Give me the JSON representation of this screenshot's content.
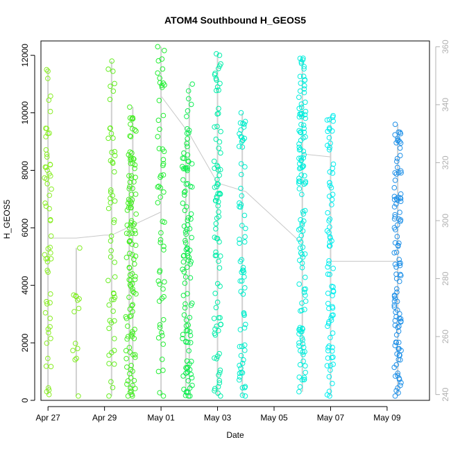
{
  "chart_data": {
    "type": "scatter",
    "title": "ATOM4 Southbound H_GEOS5",
    "xlabel": "Date",
    "ylabel": "H_GEOS5",
    "x_unit": "date",
    "xlim": [
      "2016-04-26T18:00",
      "2016-05-10T12:00"
    ],
    "ylim": [
      0,
      12500
    ],
    "x_ticks": [
      {
        "date": "2016-04-27",
        "label": "Apr 27"
      },
      {
        "date": "2016-04-29",
        "label": "Apr 29"
      },
      {
        "date": "2016-05-01",
        "label": "May 01"
      },
      {
        "date": "2016-05-03",
        "label": "May 03"
      },
      {
        "date": "2016-05-05",
        "label": "May 05"
      },
      {
        "date": "2016-05-07",
        "label": "May 07"
      },
      {
        "date": "2016-05-09",
        "label": "May 09"
      }
    ],
    "y_ticks": [
      0,
      2000,
      4000,
      6000,
      8000,
      10000,
      12000
    ],
    "right_axis": {
      "ylim": [
        238,
        362
      ],
      "ticks": [
        240,
        260,
        280,
        300,
        320,
        340,
        360
      ],
      "color": "#b0b0b0"
    },
    "grid": false,
    "point_style": "open-circle",
    "color_gradient": [
      "#88ee00",
      "#00ee44",
      "#00eedd",
      "#1e88e0"
    ],
    "profiles": [
      {
        "t": "2016-04-27T00:00",
        "ymin": 200,
        "ymax": 11500,
        "n": 60,
        "color": "#88ee22"
      },
      {
        "t": "2016-04-28T00:00",
        "ymin": 150,
        "ymax": 5300,
        "n": 14,
        "color": "#80ee22"
      },
      {
        "t": "2016-04-29T06:00",
        "ymin": 150,
        "ymax": 11800,
        "n": 55,
        "color": "#66ee22"
      },
      {
        "t": "2016-04-29T21:00",
        "ymin": 150,
        "ymax": 8600,
        "n": 45,
        "color": "#44ee22"
      },
      {
        "t": "2016-04-30T00:00",
        "ymin": 150,
        "ymax": 10200,
        "n": 80,
        "color": "#44ee22"
      },
      {
        "t": "2016-05-01T00:00",
        "ymin": 150,
        "ymax": 12300,
        "n": 60,
        "color": "#22ee33"
      },
      {
        "t": "2016-05-01T21:00",
        "ymin": 150,
        "ymax": 9100,
        "n": 60,
        "color": "#11ee44"
      },
      {
        "t": "2016-05-02T00:00",
        "ymin": 150,
        "ymax": 11000,
        "n": 55,
        "color": "#11ee55"
      },
      {
        "t": "2016-05-03T00:00",
        "ymin": 150,
        "ymax": 12050,
        "n": 90,
        "color": "#00eeaa"
      },
      {
        "t": "2016-05-03T21:00",
        "ymin": 150,
        "ymax": 10000,
        "n": 70,
        "color": "#00eecc"
      },
      {
        "t": "2016-05-06T00:00",
        "ymin": 300,
        "ymax": 11900,
        "n": 130,
        "color": "#00eedd"
      },
      {
        "t": "2016-05-07T00:00",
        "ymin": 150,
        "ymax": 9900,
        "n": 80,
        "color": "#00eeee"
      },
      {
        "t": "2016-05-09T09:00",
        "ymin": 150,
        "ymax": 9600,
        "n": 110,
        "color": "#1e90e8"
      }
    ],
    "right_axis_line": [
      {
        "t": "2016-04-27T00:00",
        "v": 280
      },
      {
        "t": "2016-04-27T00:00",
        "v": 294
      },
      {
        "t": "2016-04-28T00:00",
        "v": 294
      },
      {
        "t": "2016-04-28T00:00",
        "v": 294
      },
      {
        "t": "2016-04-29T00:00",
        "v": 295
      },
      {
        "t": "2016-04-29T06:00",
        "v": 295
      },
      {
        "t": "2016-05-01T00:00",
        "v": 303
      },
      {
        "t": "2016-05-01T00:00",
        "v": 343
      },
      {
        "t": "2016-05-02T00:00",
        "v": 330
      },
      {
        "t": "2016-05-03T00:00",
        "v": 313
      },
      {
        "t": "2016-05-04T00:00",
        "v": 310
      },
      {
        "t": "2016-05-06T00:00",
        "v": 292
      },
      {
        "t": "2016-05-06T00:00",
        "v": 323
      },
      {
        "t": "2016-05-07T00:00",
        "v": 322
      },
      {
        "t": "2016-05-07T00:00",
        "v": 286
      },
      {
        "t": "2016-05-09T12:00",
        "v": 286
      }
    ]
  }
}
